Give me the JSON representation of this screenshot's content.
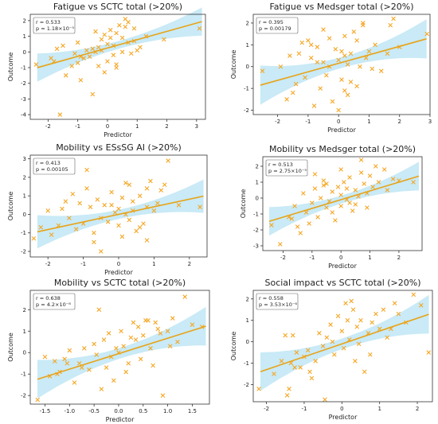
{
  "chart_data": [
    {
      "type": "scatter",
      "title": "Fatigue vs SCTC total (>20%)",
      "xlabel": "Predictor",
      "ylabel": "Outcome",
      "stats": [
        "r = 0.533",
        "p = 1.18×10⁻⁵"
      ],
      "xlim": [
        -2.6,
        3.3
      ],
      "ylim": [
        -4.3,
        2.4
      ],
      "xticks": [
        -2,
        -1,
        0,
        1,
        2,
        3
      ],
      "yticks": [
        2,
        1,
        0,
        -1,
        -2,
        -3,
        -4
      ],
      "fit": {
        "slope": 0.53,
        "intercept": 0.25
      },
      "x": [
        -2.4,
        -1.9,
        -1.8,
        -1.7,
        -1.6,
        -1.4,
        -1.2,
        -1.1,
        -1.0,
        -1.0,
        -0.9,
        -0.8,
        -0.7,
        -0.6,
        -0.5,
        -0.5,
        -0.4,
        -0.3,
        -0.3,
        -0.2,
        -0.1,
        -0.1,
        0.0,
        0.0,
        0.1,
        0.1,
        0.2,
        0.2,
        0.3,
        0.3,
        0.4,
        0.5,
        0.5,
        0.6,
        0.7,
        0.8,
        0.9,
        1.0,
        1.1,
        1.3,
        -1.5,
        -0.4,
        0.6,
        1.9,
        3.1,
        -0.9,
        0.9,
        0.3,
        -0.2,
        0.7
      ],
      "y": [
        -0.8,
        -0.4,
        -0.6,
        0.2,
        -4.0,
        -1.5,
        -0.9,
        -0.1,
        -0.7,
        0.6,
        -1.8,
        -0.4,
        0.1,
        -0.3,
        0.2,
        -2.7,
        0.0,
        0.3,
        -0.9,
        0.1,
        1.1,
        -1.3,
        0.5,
        -0.6,
        0.9,
        1.4,
        -0.2,
        0.4,
        1.2,
        -0.8,
        1.7,
        0.0,
        0.9,
        2.1,
        0.6,
        -0.1,
        1.5,
        0.1,
        0.3,
        1.0,
        0.4,
        1.3,
        1.6,
        0.8,
        1.5,
        -0.3,
        0.7,
        -1.0,
        0.8,
        1.9
      ]
    },
    {
      "type": "scatter",
      "title": "Fatigue vs Medsger total (>20%)",
      "xlabel": "Predictor",
      "ylabel": "Outcome",
      "stats": [
        "r = 0.395",
        "p = 0.00179"
      ],
      "xlim": [
        -2.8,
        3.0
      ],
      "ylim": [
        -2.2,
        2.4
      ],
      "xticks": [
        -2,
        -1,
        0,
        1,
        2,
        3
      ],
      "yticks": [
        2,
        1,
        0,
        -1,
        -2
      ],
      "fit": {
        "slope": 0.39,
        "intercept": 0.15
      },
      "x": [
        -2.5,
        -1.9,
        -1.7,
        -1.6,
        -1.5,
        -1.3,
        -1.2,
        -1.1,
        -1.0,
        -0.9,
        -0.8,
        -0.7,
        -0.6,
        -0.5,
        -0.5,
        -0.4,
        -0.3,
        -0.2,
        -0.1,
        0.0,
        0.0,
        0.1,
        0.1,
        0.2,
        0.2,
        0.3,
        0.3,
        0.4,
        0.5,
        0.6,
        0.7,
        0.8,
        0.9,
        1.0,
        1.2,
        1.4,
        1.6,
        1.8,
        2.0,
        2.9,
        -1.4,
        -0.3,
        0.4,
        0.6,
        1.7,
        -0.7,
        0.2,
        -0.9,
        0.8,
        1.1
      ],
      "y": [
        -0.2,
        0.0,
        -1.5,
        0.5,
        -1.2,
        0.6,
        1.1,
        -0.5,
        1.2,
        0.4,
        -1.8,
        0.9,
        -1.0,
        1.7,
        0.2,
        -0.4,
        1.3,
        -1.6,
        0.8,
        0.3,
        -2.0,
        0.7,
        -0.6,
        0.5,
        1.4,
        -1.3,
        0.1,
        0.6,
        1.6,
        -0.9,
        0.0,
        1.9,
        0.4,
        0.7,
        1.0,
        -0.2,
        0.6,
        2.2,
        0.9,
        1.5,
        -0.8,
        0.0,
        -0.7,
        1.2,
        1.9,
        0.2,
        -1.1,
        1.0,
        2.0,
        -0.1
      ]
    },
    {
      "type": "scatter",
      "title": "Mobility vs ESsSG AI (>20%)",
      "xlabel": "Predictor",
      "ylabel": "Outcome",
      "stats": [
        "r = 0.413",
        "p = 0.00105"
      ],
      "xlim": [
        -2.5,
        2.5
      ],
      "ylim": [
        -2.3,
        3.2
      ],
      "xticks": [
        -2,
        -1,
        0,
        1,
        2
      ],
      "yticks": [
        3,
        2,
        1,
        0,
        -1,
        -2
      ],
      "fit": {
        "slope": 0.41,
        "intercept": 0.0
      },
      "x": [
        -2.4,
        -2.2,
        -2.0,
        -1.9,
        -1.7,
        -1.6,
        -1.4,
        -1.3,
        -1.2,
        -1.1,
        -1.0,
        -0.9,
        -0.8,
        -0.7,
        -0.6,
        -0.5,
        -0.5,
        -0.4,
        -0.3,
        -0.2,
        -0.1,
        0.0,
        0.0,
        0.1,
        0.1,
        0.2,
        0.3,
        0.3,
        0.4,
        0.5,
        0.6,
        0.7,
        0.8,
        0.8,
        0.9,
        1.0,
        1.2,
        1.4,
        1.7,
        2.3,
        -0.9,
        0.2,
        0.6,
        1.3,
        -1.5,
        -0.2,
        0.4,
        0.8,
        -0.7,
        1.1
      ],
      "y": [
        -1.3,
        -0.7,
        0.2,
        -1.1,
        -0.6,
        0.3,
        -0.2,
        1.1,
        -0.8,
        0.6,
        -0.5,
        1.4,
        0.4,
        -1.0,
        0.8,
        -0.2,
        -2.0,
        0.5,
        -0.4,
        1.2,
        0.1,
        -0.6,
        0.3,
        0.9,
        -1.2,
        0.0,
        1.6,
        -0.3,
        0.7,
        -0.9,
        1.0,
        -0.5,
        0.4,
        -1.4,
        1.8,
        0.2,
        1.3,
        2.9,
        0.5,
        0.4,
        2.4,
        1.7,
        -0.7,
        1.6,
        0.7,
        0.5,
        0.2,
        1.4,
        -1.5,
        0.6
      ]
    },
    {
      "type": "scatter",
      "title": "Mobility vs Medsger total (>20%)",
      "xlabel": "Predictor",
      "ylabel": "Outcome",
      "stats": [
        "r = 0.513",
        "p = 2.75×10⁻⁵"
      ],
      "xlim": [
        -2.7,
        2.8
      ],
      "ylim": [
        -3.3,
        2.6
      ],
      "xticks": [
        -2,
        -1,
        0,
        1,
        2
      ],
      "yticks": [
        2,
        1,
        0,
        -1,
        -2,
        -3
      ],
      "fit": {
        "slope": 0.55,
        "intercept": -0.1
      },
      "x": [
        -2.4,
        -2.1,
        -1.8,
        -1.6,
        -1.5,
        -1.3,
        -1.2,
        -1.1,
        -1.0,
        -0.9,
        -0.8,
        -0.7,
        -0.6,
        -0.5,
        -0.5,
        -0.4,
        -0.3,
        -0.2,
        -0.1,
        0.0,
        0.0,
        0.1,
        0.2,
        0.2,
        0.3,
        0.4,
        0.5,
        0.6,
        0.7,
        0.8,
        0.9,
        1.0,
        1.1,
        1.3,
        1.5,
        1.8,
        2.0,
        2.5,
        -1.4,
        -0.9,
        -0.3,
        0.3,
        0.7,
        1.2,
        -0.6,
        0.0,
        0.5,
        -1.7,
        1.6,
        0.9
      ],
      "y": [
        -1.7,
        -2.9,
        -1.2,
        -0.5,
        -1.8,
        0.3,
        -0.9,
        -1.6,
        -0.3,
        0.6,
        -1.2,
        0.0,
        1.1,
        -0.6,
        0.9,
        -0.2,
        0.4,
        -1.4,
        0.7,
        0.2,
        -0.5,
        1.0,
        -0.1,
        0.6,
        1.3,
        -0.8,
        0.5,
        0.1,
        2.4,
        0.9,
        0.3,
        1.4,
        0.7,
        1.0,
        1.8,
        1.2,
        1.1,
        1.0,
        -2.2,
        1.5,
        -0.9,
        -0.3,
        1.6,
        2.0,
        0.8,
        1.8,
        -0.4,
        -1.3,
        0.5,
        -0.6
      ]
    },
    {
      "type": "scatter",
      "title": "Mobility vs SCTC total (>20%)",
      "xlabel": "Predictor",
      "ylabel": "Outcome",
      "stats": [
        "r = 0.638",
        "p = 4.2×10⁻⁸"
      ],
      "xlim": [
        -1.8,
        1.85
      ],
      "ylim": [
        -2.4,
        2.9
      ],
      "xticks": [
        -1.5,
        -1.0,
        -0.5,
        0.0,
        0.5,
        1.0,
        1.5
      ],
      "yticks": [
        2,
        1,
        0,
        -1,
        -2
      ],
      "fit": {
        "slope": 0.72,
        "intercept": -0.05
      },
      "x": [
        -1.65,
        -1.5,
        -1.4,
        -1.3,
        -1.2,
        -1.1,
        -1.05,
        -1.0,
        -0.9,
        -0.8,
        -0.7,
        -0.6,
        -0.5,
        -0.45,
        -0.4,
        -0.3,
        -0.25,
        -0.2,
        -0.1,
        -0.05,
        0.0,
        0.05,
        0.1,
        0.2,
        0.25,
        0.3,
        0.4,
        0.45,
        0.5,
        0.6,
        0.65,
        0.7,
        0.8,
        0.9,
        1.0,
        1.1,
        1.2,
        1.35,
        1.5,
        1.7,
        -0.35,
        0.15,
        0.55,
        -0.75,
        0.85,
        -1.25,
        0.35,
        -0.15,
        0.75,
        1.05
      ],
      "y": [
        -2.2,
        -0.2,
        -1.1,
        -0.4,
        -0.9,
        -0.3,
        -0.5,
        0.1,
        -1.4,
        -0.5,
        0.2,
        -0.8,
        0.4,
        -0.1,
        2.0,
        0.6,
        -0.7,
        0.9,
        -1.3,
        0.2,
        0.0,
        1.0,
        0.3,
        -0.5,
        0.7,
        1.4,
        1.2,
        -0.3,
        0.8,
        1.5,
        0.2,
        -0.6,
        1.1,
        -2.0,
        1.0,
        1.6,
        0.5,
        2.6,
        1.3,
        1.2,
        -1.7,
        -0.9,
        1.5,
        -0.7,
        0.9,
        -1.0,
        0.6,
        -0.2,
        1.4,
        0.3
      ]
    },
    {
      "type": "scatter",
      "title": "Social impact vs SCTC total (>20%)",
      "xlabel": "Predictor",
      "ylabel": "Outcome",
      "stats": [
        "r = 0.558",
        "p = 3.53×10⁻⁶"
      ],
      "xlim": [
        -2.35,
        2.4
      ],
      "ylim": [
        -2.8,
        2.4
      ],
      "xticks": [
        -2,
        -1,
        0,
        1,
        2
      ],
      "yticks": [
        2,
        1,
        0,
        -1,
        -2
      ],
      "fit": {
        "slope": 0.6,
        "intercept": -0.1
      },
      "x": [
        -2.2,
        -1.8,
        -1.6,
        -1.5,
        -1.4,
        -1.35,
        -1.3,
        -1.2,
        -1.1,
        -1.0,
        -0.9,
        -0.8,
        -0.7,
        -0.6,
        -0.5,
        -0.45,
        -0.4,
        -0.3,
        -0.2,
        -0.1,
        0.0,
        0.05,
        0.1,
        0.2,
        0.3,
        0.35,
        0.4,
        0.5,
        0.6,
        0.7,
        0.8,
        0.9,
        1.0,
        1.2,
        1.4,
        1.5,
        1.7,
        1.9,
        2.1,
        2.3,
        -1.45,
        -0.25,
        0.45,
        1.1,
        -0.85,
        0.15,
        0.75,
        -1.25,
        1.3,
        0.25
      ],
      "y": [
        -2.2,
        -1.5,
        -0.9,
        0.3,
        -2.2,
        -1.0,
        0.3,
        -0.5,
        -1.2,
        -0.7,
        -0.4,
        -1.7,
        -0.9,
        0.4,
        -0.2,
        -2.7,
        0.2,
        0.8,
        -0.6,
        1.2,
        0.5,
        -0.3,
        1.8,
        0.1,
        1.5,
        -0.9,
        0.7,
        1.0,
        -1.4,
        0.4,
        0.9,
        1.3,
        0.6,
        0.2,
        1.8,
        1.3,
        0.9,
        2.2,
        1.7,
        -0.5,
        -2.5,
        0.0,
        -0.1,
        1.5,
        -1.4,
        1.0,
        -0.6,
        -1.2,
        0.6,
        1.9
      ]
    }
  ]
}
